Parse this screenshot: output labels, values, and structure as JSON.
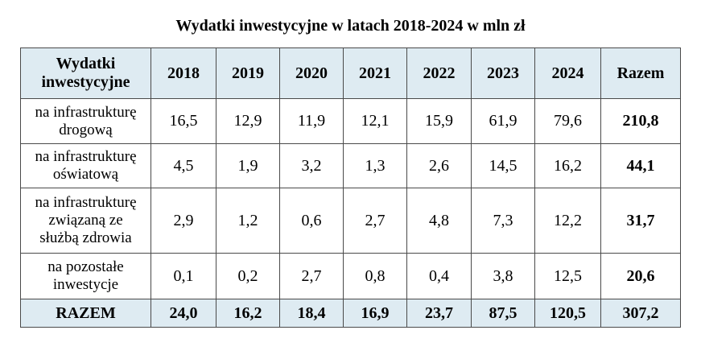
{
  "title": "Wydatki inwestycyjne w latach 2018-2024 w mln zł",
  "table": {
    "header": {
      "first_line1": "Wydatki",
      "first_line2": "inwestycyjne",
      "years": [
        "2018",
        "2019",
        "2020",
        "2021",
        "2022",
        "2023",
        "2024"
      ],
      "total": "Razem"
    },
    "rows": [
      {
        "label_lines": [
          "na infrastrukturę",
          "drogową"
        ],
        "values": [
          "16,5",
          "12,9",
          "11,9",
          "12,1",
          "15,9",
          "61,9",
          "79,6"
        ],
        "total": "210,8"
      },
      {
        "label_lines": [
          "na infrastrukturę",
          "oświatową"
        ],
        "values": [
          "4,5",
          "1,9",
          "3,2",
          "1,3",
          "2,6",
          "14,5",
          "16,2"
        ],
        "total": "44,1"
      },
      {
        "label_lines": [
          "na infrastrukturę",
          "związaną ze",
          "służbą zdrowia"
        ],
        "values": [
          "2,9",
          "1,2",
          "0,6",
          "2,7",
          "4,8",
          "7,3",
          "12,2"
        ],
        "total": "31,7"
      },
      {
        "label_lines": [
          "na pozostałe",
          "inwestycje"
        ],
        "values": [
          "0,1",
          "0,2",
          "2,7",
          "0,8",
          "0,4",
          "3,8",
          "12,5"
        ],
        "total": "20,6"
      }
    ],
    "footer": {
      "label": "RAZEM",
      "values": [
        "24,0",
        "16,2",
        "18,4",
        "16,9",
        "23,7",
        "87,5",
        "120,5"
      ],
      "total": "307,2"
    }
  },
  "colors": {
    "header_bg": "#deebf2",
    "border": "#4a4a4a"
  }
}
